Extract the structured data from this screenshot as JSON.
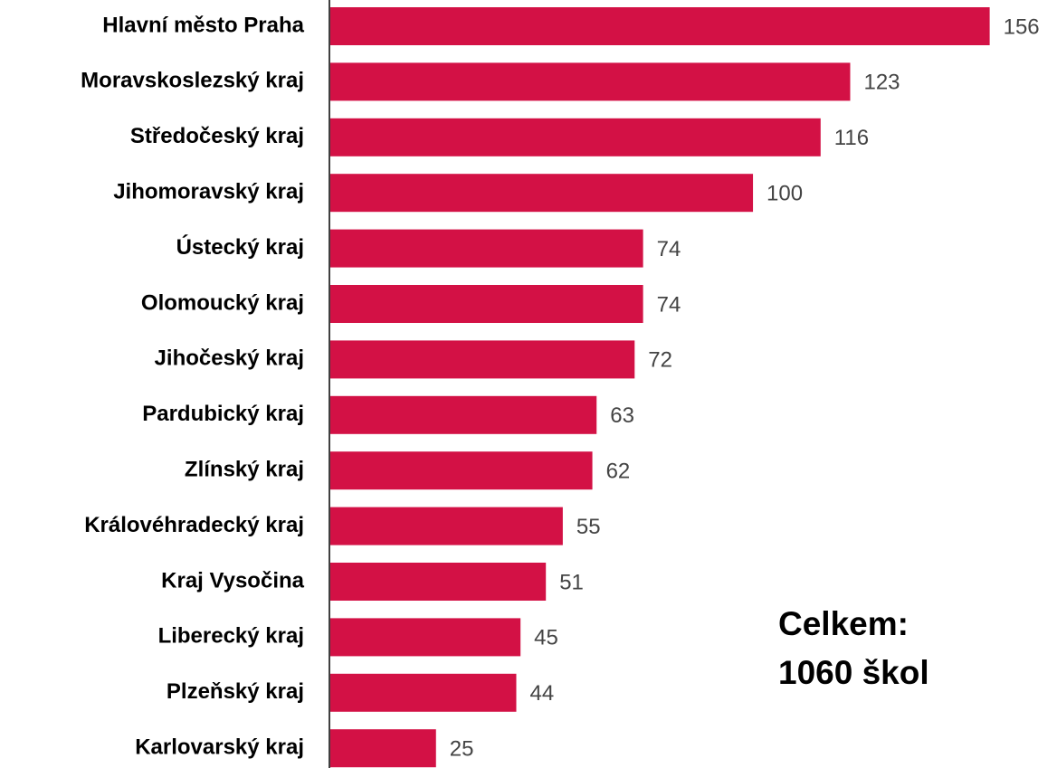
{
  "chart_data": {
    "type": "barh",
    "categories": [
      "Hlavní město Praha",
      "Moravskoslezský kraj",
      "Středočeský kraj",
      "Jihomoravský kraj",
      "Ústecký kraj",
      "Olomoucký kraj",
      "Jihočeský kraj",
      "Pardubický kraj",
      "Zlínský kraj",
      "Královéhradecký kraj",
      "Kraj Vysočina",
      "Liberecký kraj",
      "Plzeňský kraj",
      "Karlovarský kraj"
    ],
    "values": [
      156,
      123,
      116,
      100,
      74,
      74,
      72,
      63,
      62,
      55,
      51,
      45,
      44,
      25
    ],
    "color": "#d31145",
    "xlim": [
      0,
      170
    ],
    "annotation": [
      "Celkem:",
      "1060 škol"
    ]
  }
}
